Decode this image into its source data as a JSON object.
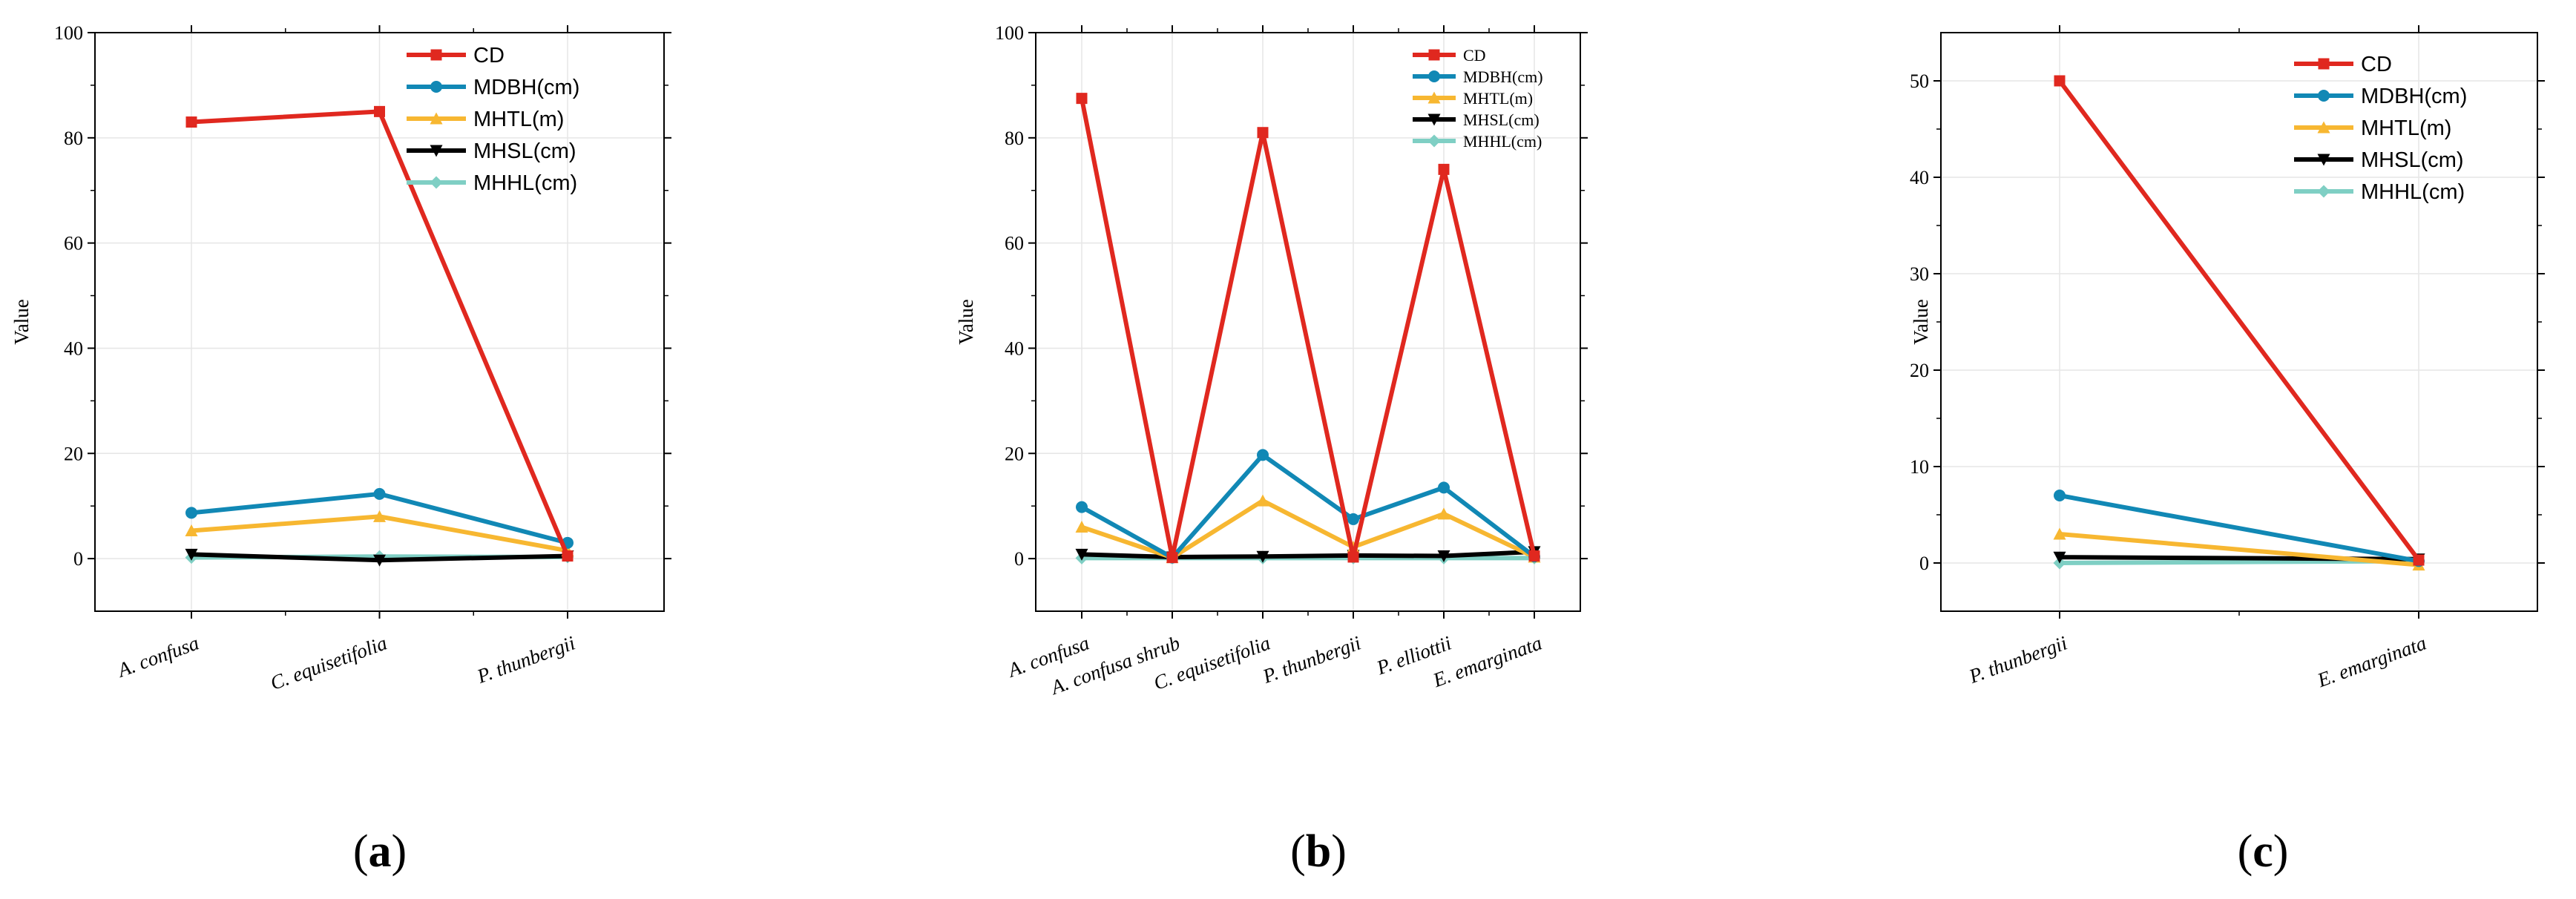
{
  "chart_data": [
    {
      "type": "line",
      "panel": "(a)",
      "panel_letter": "a",
      "ylabel": "Value",
      "ylim": [
        -10,
        100
      ],
      "yticks": [
        0,
        20,
        40,
        60,
        80,
        100
      ],
      "grid": true,
      "legend_position": "top-right",
      "categories": [
        "A. confusa",
        "C. equisetifolia",
        "P. thunbergii"
      ],
      "series": [
        {
          "name": "CD",
          "color": "#e0281f",
          "marker": "square",
          "values": [
            83,
            85,
            0.5
          ]
        },
        {
          "name": "MDBH(cm)",
          "color": "#1188b5",
          "marker": "circle",
          "values": [
            8.7,
            12.3,
            3
          ]
        },
        {
          "name": "MHTL(m)",
          "color": "#f7b731",
          "marker": "triangle-up",
          "values": [
            5.3,
            8,
            1.5
          ]
        },
        {
          "name": "MHSL(cm)",
          "color": "#000000",
          "marker": "triangle-down",
          "values": [
            0.8,
            -0.3,
            0.5
          ]
        },
        {
          "name": "MHHL(cm)",
          "color": "#7fcfc4",
          "marker": "diamond",
          "values": [
            0.2,
            0.4,
            0.3
          ]
        }
      ]
    },
    {
      "type": "line",
      "panel": "(b)",
      "panel_letter": "b",
      "ylabel": "Value",
      "ylim": [
        -10,
        100
      ],
      "yticks": [
        0,
        20,
        40,
        60,
        80,
        100
      ],
      "grid": true,
      "legend_position": "top-right",
      "categories": [
        "A. confusa",
        "A. confusa shrub",
        "C. equisetifolia",
        "P. thunbergii",
        "P. elliottii",
        "E. emarginata"
      ],
      "series": [
        {
          "name": "CD",
          "color": "#e0281f",
          "marker": "square",
          "values": [
            87.5,
            0.2,
            81,
            0.3,
            74,
            0.5
          ]
        },
        {
          "name": "MDBH(cm)",
          "color": "#1188b5",
          "marker": "circle",
          "values": [
            9.8,
            0.2,
            19.7,
            7.5,
            13.5,
            0.4
          ]
        },
        {
          "name": "MHTL(m)",
          "color": "#f7b731",
          "marker": "triangle-up",
          "values": [
            6,
            0.2,
            11,
            2.2,
            8.5,
            0.3
          ]
        },
        {
          "name": "MHSL(cm)",
          "color": "#000000",
          "marker": "triangle-down",
          "values": [
            0.8,
            0.3,
            0.4,
            0.6,
            0.5,
            1.3
          ]
        },
        {
          "name": "MHHL(cm)",
          "color": "#7fcfc4",
          "marker": "diamond",
          "values": [
            0.1,
            0.1,
            0.1,
            0.1,
            0.1,
            0.1
          ]
        }
      ]
    },
    {
      "type": "line",
      "panel": "(c)",
      "panel_letter": "c",
      "ylabel": "Value",
      "ylim": [
        -5,
        55
      ],
      "yticks": [
        0,
        10,
        20,
        30,
        40,
        50
      ],
      "grid": true,
      "legend_position": "top-right",
      "categories": [
        "P. thunbergii",
        "E. emarginata"
      ],
      "series": [
        {
          "name": "CD",
          "color": "#e0281f",
          "marker": "square",
          "values": [
            50,
            0.3
          ]
        },
        {
          "name": "MDBH(cm)",
          "color": "#1188b5",
          "marker": "circle",
          "values": [
            7,
            0.2
          ]
        },
        {
          "name": "MHTL(m)",
          "color": "#f7b731",
          "marker": "triangle-up",
          "values": [
            3,
            -0.2
          ]
        },
        {
          "name": "MHSL(cm)",
          "color": "#000000",
          "marker": "triangle-down",
          "values": [
            0.6,
            0.4
          ]
        },
        {
          "name": "MHHL(cm)",
          "color": "#7fcfc4",
          "marker": "diamond",
          "values": [
            0,
            0.2
          ]
        }
      ]
    }
  ]
}
